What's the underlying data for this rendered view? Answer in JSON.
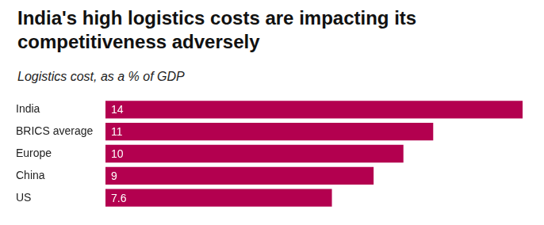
{
  "chart_data": {
    "type": "bar",
    "orientation": "horizontal",
    "title": "India's high logistics costs are impacting its competitiveness adversely",
    "subtitle": "Logistics cost, as a % of GDP",
    "categories": [
      "India",
      "BRICS average",
      "Europe",
      "China",
      "US"
    ],
    "values": [
      14,
      11,
      10,
      9,
      7.6
    ],
    "color": "#b3004f",
    "xlim": [
      0,
      14
    ],
    "grid": false,
    "data_labels": true,
    "tick_labels": "y"
  }
}
